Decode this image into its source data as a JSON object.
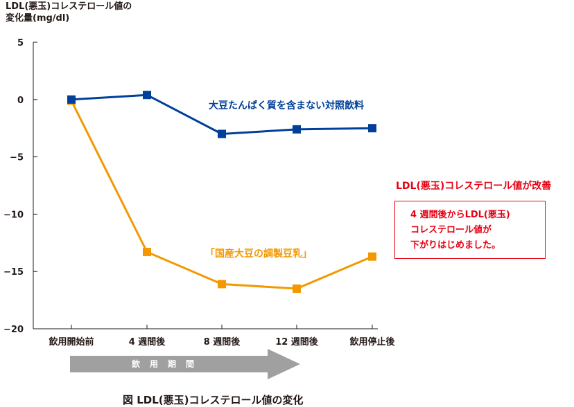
{
  "y_axis_title_line1": "LDL(悪玉)コレステロール値の",
  "y_axis_title_line2": "変化量(mg/dl)",
  "chart_data": {
    "type": "line",
    "categories": [
      "飲用開始前",
      "4 週間後",
      "8 週間後",
      "12 週間後",
      "飲用停止後"
    ],
    "y_ticks": [
      "5",
      "0",
      "−5",
      "−10",
      "−15",
      "−20"
    ],
    "ylim": [
      -20,
      5
    ],
    "grid": false,
    "series": [
      {
        "name": "大豆たんぱく質を含まない対照飲料",
        "color": "#004098",
        "values": [
          0,
          0.4,
          -3.0,
          -2.6,
          -2.5
        ]
      },
      {
        "name": "「国産大豆の調製豆乳」",
        "color": "#f39800",
        "values": [
          -0.1,
          -13.3,
          -16.1,
          -16.5,
          -13.7
        ]
      }
    ]
  },
  "improvement_heading": "LDL(悪玉)コレステロール値が改善",
  "callout_lines": [
    "4 週間後からLDL(悪玉)",
    "コレステロール値が",
    "下がりはじめました。"
  ],
  "period_label": "飲用期間",
  "caption": "図 LDL(悪玉)コレステロール値の変化",
  "colors": {
    "accent_red": "#e60012",
    "arrow_gray": "#a0a0a0"
  }
}
